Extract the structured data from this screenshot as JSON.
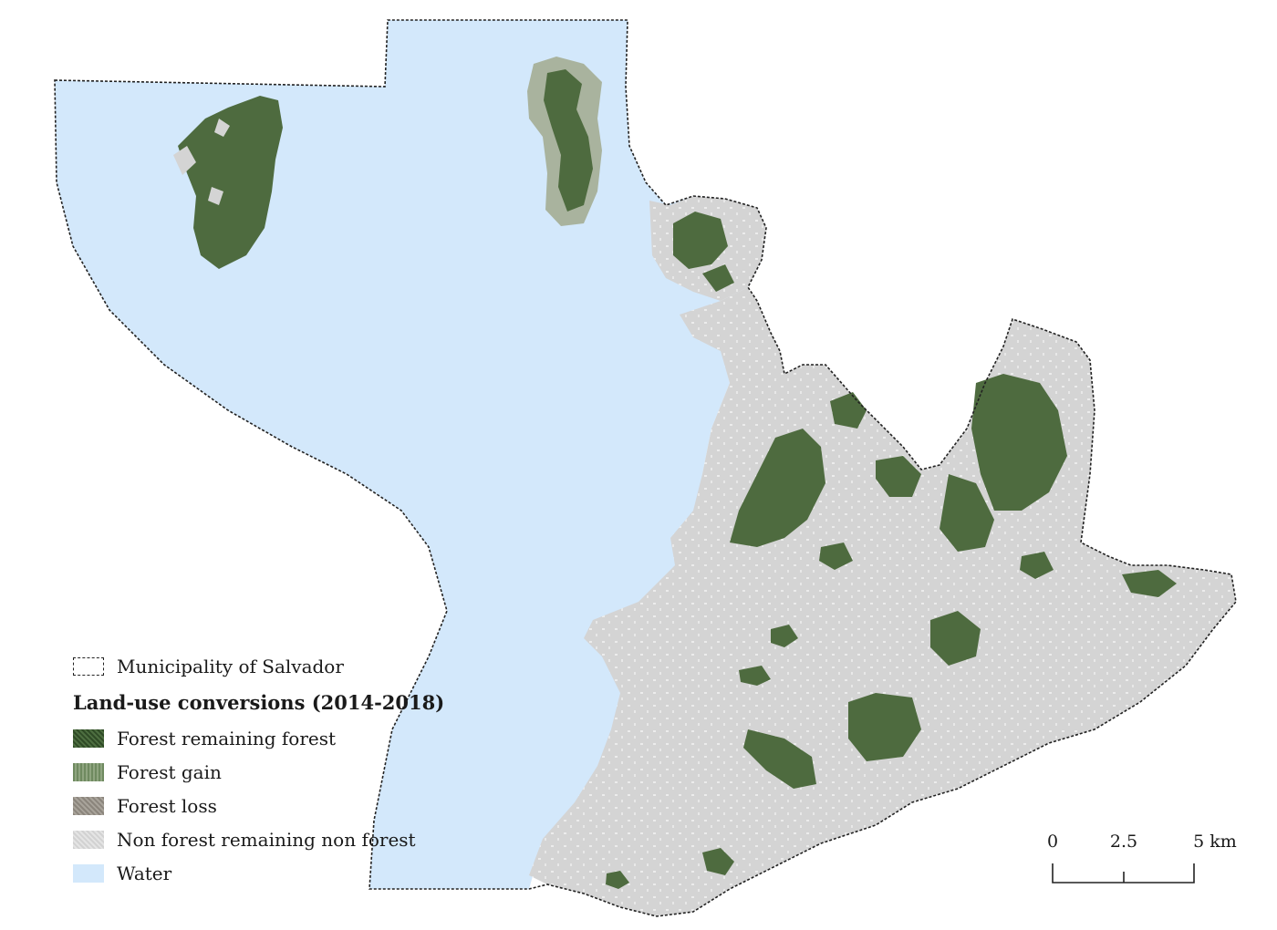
{
  "map": {
    "region": "Municipality of Salvador",
    "colors": {
      "water": "#d3e8fb",
      "non_forest": "#d4d4d4",
      "forest": "#4e6b3f",
      "forest_dark": "#2f4a26",
      "forest_gain": "#7d9670",
      "forest_loss": "#96918a",
      "boundary": "#222222"
    }
  },
  "legend": {
    "boundary_label": "Municipality of Salvador",
    "title": "Land-use conversions (2014-2018)",
    "items": [
      {
        "label": "Forest remaining forest",
        "key": "forest"
      },
      {
        "label": "Forest gain",
        "key": "gain"
      },
      {
        "label": "Forest loss",
        "key": "loss"
      },
      {
        "label": "Non forest remaining non forest",
        "key": "nonforest"
      },
      {
        "label": "Water",
        "key": "water"
      }
    ]
  },
  "scale_bar": {
    "labels": [
      "0",
      "2.5",
      "5 km"
    ]
  }
}
